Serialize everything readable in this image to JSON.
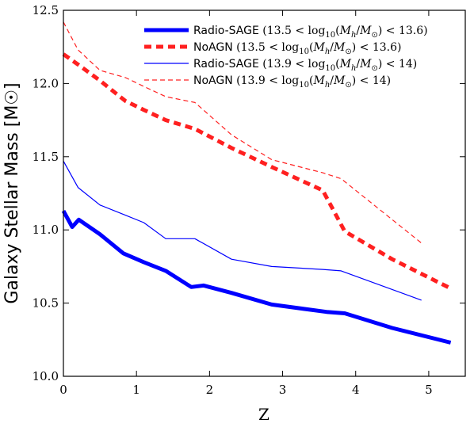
{
  "chart_data": {
    "type": "line",
    "xlabel": "Z",
    "ylabel": "Galaxy Stellar Mass [M☉]",
    "xlim": [
      0,
      5.5
    ],
    "ylim": [
      10.0,
      12.5
    ],
    "x_ticks": [
      "0",
      "1",
      "2",
      "3",
      "4",
      "5"
    ],
    "y_ticks": [
      "10.0",
      "10.5",
      "11.0",
      "11.5",
      "12.0",
      "12.5"
    ],
    "grid": false,
    "legend_position": "top-right",
    "series": [
      {
        "name": "Radio-SAGE (13.5 < log10(Mh/M☉) < 13.6)",
        "color": "#0000ff",
        "style": "solid",
        "weight": "thick",
        "x": [
          0.0,
          0.12,
          0.21,
          0.5,
          0.82,
          1.1,
          1.4,
          1.75,
          1.92,
          2.3,
          2.85,
          3.6,
          3.85,
          4.5,
          5.3
        ],
        "y": [
          11.13,
          11.02,
          11.07,
          10.97,
          10.84,
          10.78,
          10.72,
          10.61,
          10.62,
          10.57,
          10.49,
          10.44,
          10.43,
          10.33,
          10.23
        ]
      },
      {
        "name": "NoAGN (13.5 < log10(Mh/M☉) < 13.6)",
        "color": "#ff2020",
        "style": "dashed",
        "weight": "thick",
        "x": [
          0.0,
          0.2,
          0.5,
          0.85,
          1.1,
          1.4,
          1.8,
          2.3,
          2.85,
          3.55,
          3.85,
          4.5,
          5.3
        ],
        "y": [
          12.2,
          12.13,
          12.02,
          11.88,
          11.82,
          11.75,
          11.69,
          11.56,
          11.43,
          11.27,
          10.99,
          10.8,
          10.6
        ]
      },
      {
        "name": "Radio-SAGE (13.9 < log10(Mh/M☉) < 14)",
        "color": "#0000ff",
        "style": "solid",
        "weight": "thin",
        "x": [
          0.0,
          0.2,
          0.5,
          0.85,
          1.1,
          1.4,
          1.8,
          2.3,
          2.85,
          3.55,
          3.8,
          4.9
        ],
        "y": [
          11.47,
          11.29,
          11.17,
          11.1,
          11.05,
          10.94,
          10.94,
          10.8,
          10.75,
          10.73,
          10.72,
          10.52
        ]
      },
      {
        "name": "NoAGN (13.9 < log10(Mh/M☉) < 14)",
        "color": "#ff2020",
        "style": "dashed",
        "weight": "thin",
        "x": [
          0.0,
          0.2,
          0.5,
          0.85,
          1.1,
          1.4,
          1.8,
          2.3,
          2.85,
          3.55,
          3.8,
          4.9
        ],
        "y": [
          12.42,
          12.23,
          12.09,
          12.04,
          11.98,
          11.91,
          11.87,
          11.65,
          11.48,
          11.39,
          11.35,
          10.91
        ]
      }
    ],
    "legend": [
      {
        "main": "Radio-SAGE",
        "range": "(13.5 < log",
        "sub": "10",
        "rest": "(M",
        "h": "h",
        "mid": "/M",
        "sun": "⊙",
        "end": ") < 13.6)"
      },
      {
        "main": "NoAGN",
        "range": "(13.5 < log",
        "sub": "10",
        "rest": "(M",
        "h": "h",
        "mid": "/M",
        "sun": "⊙",
        "end": ") < 13.6)"
      },
      {
        "main": "Radio-SAGE",
        "range": "(13.9 < log",
        "sub": "10",
        "rest": "(M",
        "h": "h",
        "mid": "/M",
        "sun": "⊙",
        "end": ") < 14)"
      },
      {
        "main": "NoAGN",
        "range": "(13.9 < log",
        "sub": "10",
        "rest": "(M",
        "h": "h",
        "mid": "/M",
        "sun": "⊙",
        "end": ") < 14)"
      }
    ]
  }
}
